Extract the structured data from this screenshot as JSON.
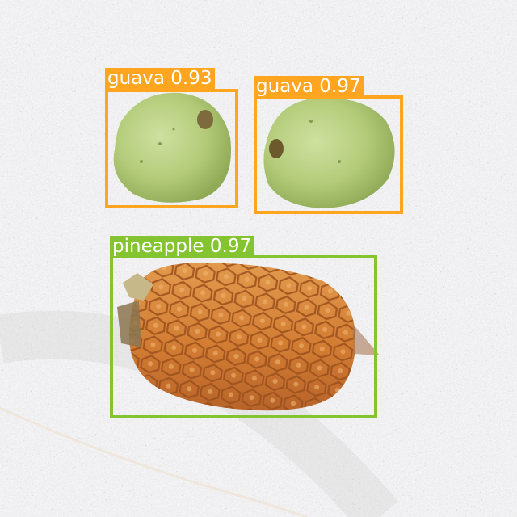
{
  "detections": [
    {
      "label": "guava",
      "score": "0.93",
      "color": "#ffa51f"
    },
    {
      "label": "guava",
      "score": "0.97",
      "color": "#ffa51f"
    },
    {
      "label": "pineapple",
      "score": "0.97",
      "color": "#84c430"
    }
  ],
  "colors": {
    "granite": "#d6d6d6",
    "guava_skin": "#b7cf7e",
    "pineapple_body": "#d9843a"
  }
}
